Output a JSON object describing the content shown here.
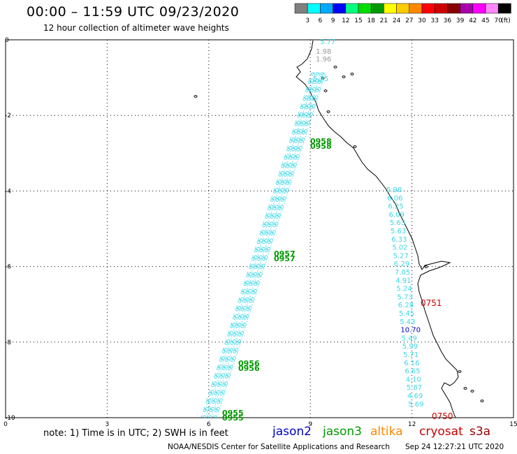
{
  "header": {
    "title": "00:00 – 11:59 UTC 09/23/2020",
    "subtitle": "12 hour collection of altimeter wave heights"
  },
  "colorbar": {
    "labels": [
      "3",
      "6",
      "9",
      "12",
      "15",
      "18",
      "21",
      "24",
      "27",
      "30",
      "33",
      "36",
      "39",
      "42",
      "45",
      "70"
    ],
    "unit": "(ft)",
    "colors": [
      "#808080",
      "#00ffff",
      "#00aaff",
      "#0000ff",
      "#00ff80",
      "#00dd00",
      "#009900",
      "#ffff00",
      "#ffcc00",
      "#ff8800",
      "#ff0000",
      "#cc0000",
      "#880000",
      "#aa00aa",
      "#ff00ff",
      "#ff88ff",
      "#000000"
    ]
  },
  "axes": {
    "x_ticks": [
      "0",
      "3",
      "6",
      "9",
      "12",
      "15"
    ],
    "y_ticks": [
      "0",
      "-2",
      "-4",
      "-6",
      "-8",
      "-10"
    ],
    "x_range": [
      0,
      15
    ],
    "y_range": [
      -10,
      0
    ]
  },
  "map_labels": {
    "upper_values": [
      "5.77",
      "1.98",
      "1.96"
    ],
    "upper_cyan": "5.75",
    "coastal_track": [
      "5.98",
      "6.06",
      "6.25",
      "6.09",
      "5.63",
      "5.63",
      "6.33",
      "5.02",
      "5.27",
      "6.29",
      "7.05",
      "4.91",
      "5.24",
      "5.73",
      "6.28",
      "5.45",
      "5.43",
      "10.70",
      "5.49",
      "5.99",
      "5.71",
      "6.16",
      "6.65",
      "4.10",
      "5.87",
      "4.69",
      "5.69"
    ],
    "times_green": [
      "0958",
      "0958",
      "0957",
      "0957",
      "0956",
      "0956",
      "0955",
      "0955"
    ],
    "times_red": [
      "0751",
      "0750"
    ]
  },
  "legend": {
    "note": "note: 1) Time is in UTC; 2) SWH is in feet",
    "satellites": [
      {
        "name": "jason2",
        "color": "#0000cc"
      },
      {
        "name": "jason3",
        "color": "#009900"
      },
      {
        "name": "altika",
        "color": "#ff8800"
      },
      {
        "name": "cryosat",
        "color": "#cc0000"
      },
      {
        "name": "s3a",
        "color": "#990000"
      }
    ]
  },
  "footer": {
    "org": "NOAA/NESDIS Center for Satellite Applications and Research",
    "timestamp": "Sep 24 12:27:21 UTC 2020"
  }
}
